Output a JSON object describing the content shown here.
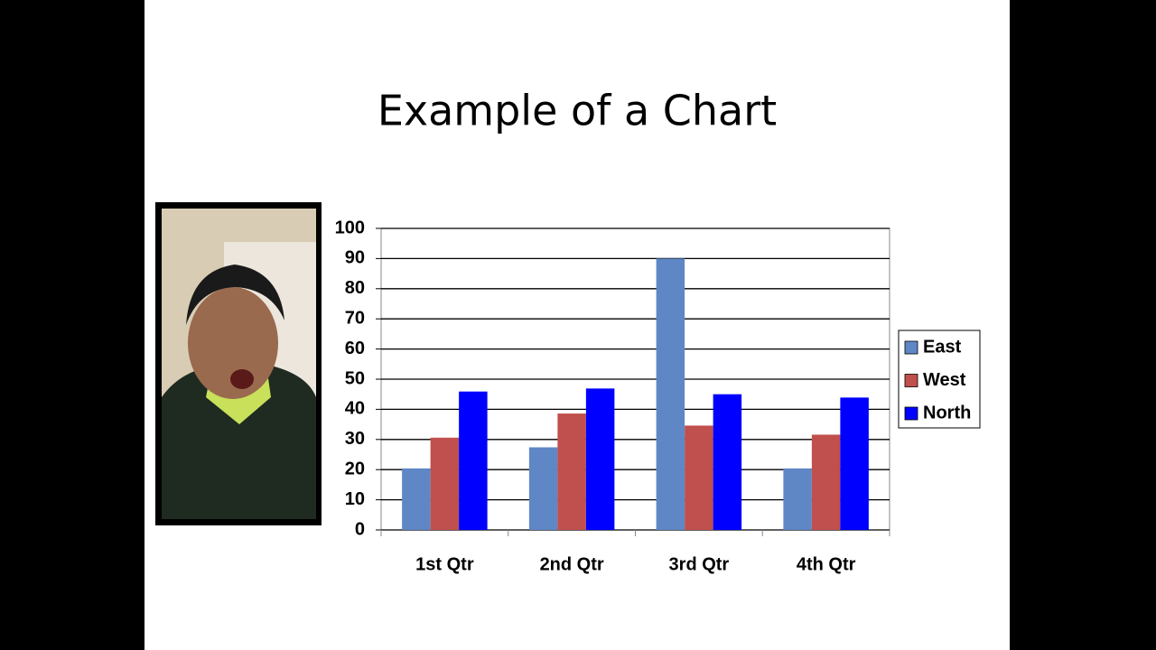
{
  "chart_data": {
    "type": "bar",
    "title": "Example of a Chart",
    "categories": [
      "1st Qtr",
      "2nd Qtr",
      "3rd Qtr",
      "4th Qtr"
    ],
    "series": [
      {
        "name": "East",
        "color": "#5f87c6",
        "values": [
          20.4,
          27.4,
          90,
          20.4
        ]
      },
      {
        "name": "West",
        "color": "#c0504d",
        "values": [
          30.6,
          38.6,
          34.6,
          31.6
        ]
      },
      {
        "name": "North",
        "color": "#0000ff",
        "values": [
          45.9,
          46.9,
          45,
          43.9
        ]
      }
    ],
    "ylim": [
      0,
      100
    ],
    "yticks": [
      0,
      10,
      20,
      30,
      40,
      50,
      60,
      70,
      80,
      90,
      100
    ],
    "grid": true,
    "legend": "right"
  }
}
